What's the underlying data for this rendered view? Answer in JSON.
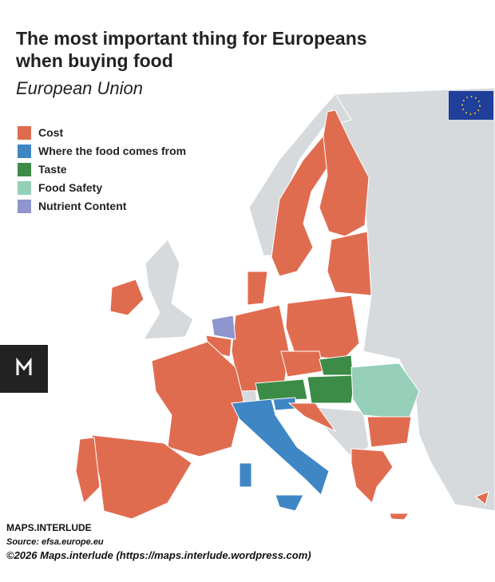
{
  "header": {
    "title_line1": "The most important thing for Europeans",
    "title_line2": "when buying food",
    "subtitle": "European Union"
  },
  "legend": {
    "items": [
      {
        "label": "Cost",
        "color": "#e06c50"
      },
      {
        "label": "Where the food comes from",
        "color": "#3f86c4"
      },
      {
        "label": "Taste",
        "color": "#3c8b47"
      },
      {
        "label": "Food Safety",
        "color": "#95cfb9"
      },
      {
        "label": "Nutrient Content",
        "color": "#8f95cf"
      }
    ]
  },
  "footer": {
    "brand": "MAPS.INTERLUDE",
    "source": "Source: efsa.europe.eu",
    "copyright": "©2026 Maps.interlude (https://maps.interlude.wordpress.com)"
  }
}
